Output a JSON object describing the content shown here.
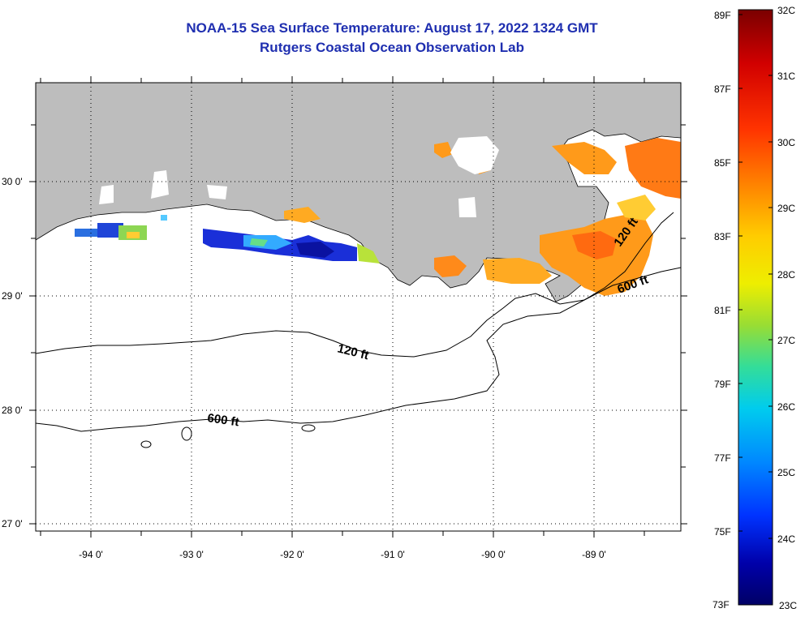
{
  "title": {
    "line1": "NOAA-15 Sea Surface Temperature:  August 17, 2022 1324 GMT",
    "line2": "Rutgers Coastal Ocean Observation Lab"
  },
  "map": {
    "lon_labels": [
      "-94 0'",
      "-93 0'",
      "-92 0'",
      "-91 0'",
      "-90 0'",
      "-89 0'"
    ],
    "lat_labels": [
      "30 0'",
      "29 0'",
      "28 0'",
      "27 0'"
    ],
    "contour_labels": [
      "120 ft",
      "600 ft",
      "120 ft",
      "600 ft"
    ],
    "colors": {
      "land": "#bdbdbd",
      "ocean": "#ffffff",
      "contour": "#000000"
    }
  },
  "colorbar": {
    "fahrenheit_labels": [
      "89F",
      "87F",
      "85F",
      "83F",
      "81F",
      "79F",
      "77F",
      "75F",
      "73F"
    ],
    "celsius_labels": [
      "32C",
      "31C",
      "30C",
      "29C",
      "28C",
      "27C",
      "26C",
      "25C",
      "24C",
      "23C"
    ],
    "gradient_colors": [
      "#7a0000",
      "#d10000",
      "#ff3300",
      "#ff8800",
      "#ffcc00",
      "#eeee00",
      "#99dd33",
      "#33dd99",
      "#00ccee",
      "#0088ff",
      "#0033ff",
      "#0000aa",
      "#000066"
    ]
  }
}
